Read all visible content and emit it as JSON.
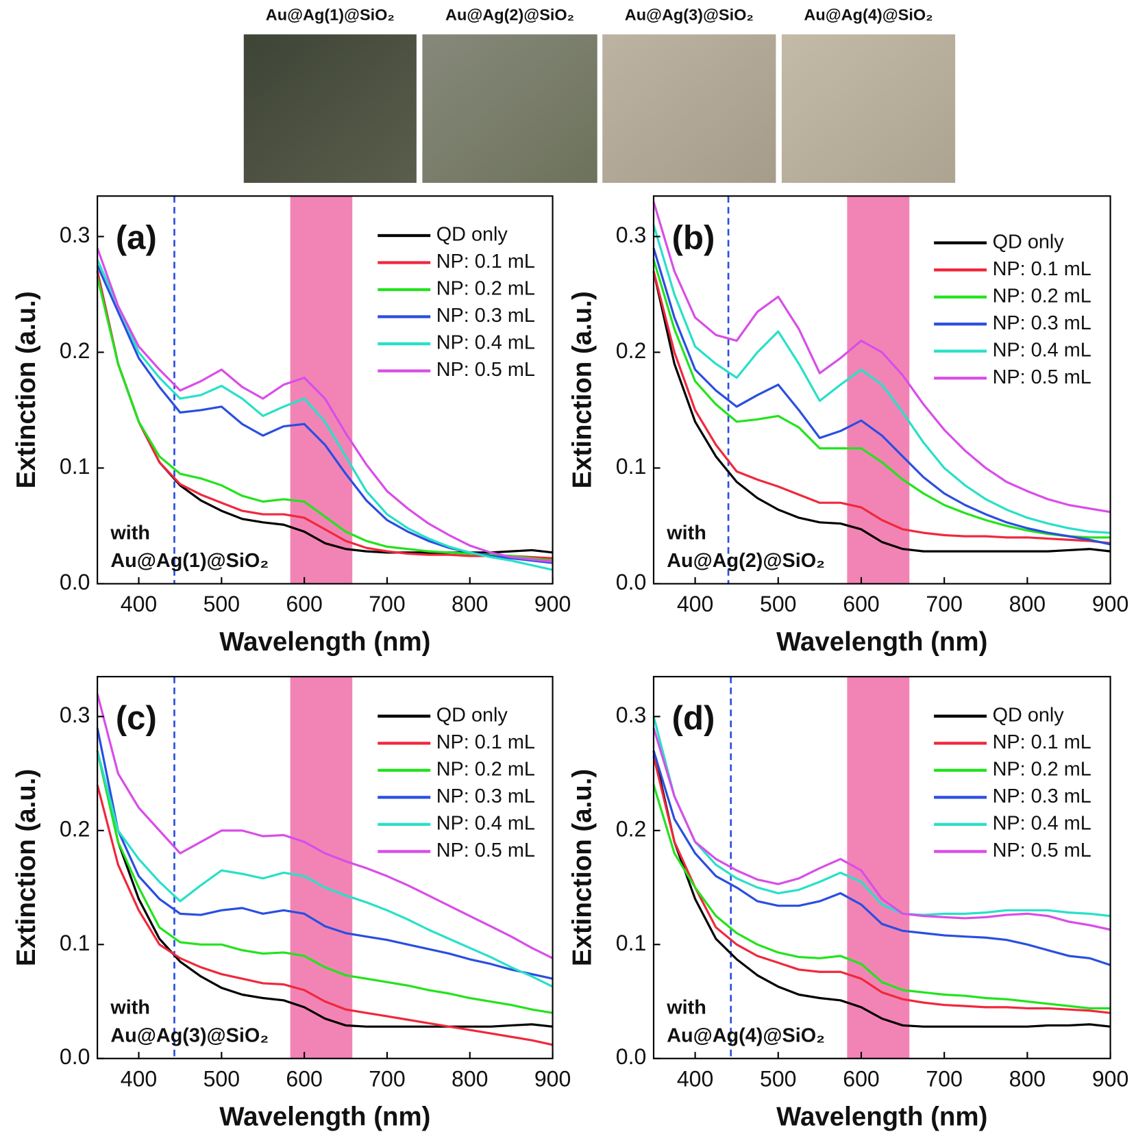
{
  "photo_labels": [
    "Au@Ag(1)@SiO₂",
    "Au@Ag(2)@SiO₂",
    "Au@Ag(3)@SiO₂",
    "Au@Ag(4)@SiO₂"
  ],
  "chart_data": [
    {
      "type": "line",
      "title": "(a)",
      "annotation": [
        "with",
        "Au@Ag(1)@SiO₂"
      ],
      "x_label": "Wavelength (nm)",
      "y_label": "Extinction (a.u.)",
      "xlim": [
        350,
        900
      ],
      "ylim": [
        0,
        0.335
      ],
      "xticks": [
        400,
        500,
        600,
        700,
        800,
        900
      ],
      "yticks": [
        {
          "value": 0,
          "label": "0.0"
        },
        0.1,
        0.2,
        0.3
      ],
      "vline": 443,
      "band": [
        583,
        658
      ],
      "legend": "upper right",
      "x": [
        350,
        375,
        400,
        425,
        450,
        475,
        500,
        525,
        550,
        575,
        600,
        625,
        650,
        675,
        700,
        725,
        750,
        775,
        800,
        825,
        850,
        875,
        900
      ],
      "series": [
        {
          "name": "QD only",
          "color": "#000000",
          "values": [
            0.27,
            0.19,
            0.14,
            0.105,
            0.085,
            0.072,
            0.063,
            0.056,
            0.053,
            0.051,
            0.045,
            0.035,
            0.03,
            0.028,
            0.027,
            0.027,
            0.027,
            0.027,
            0.027,
            0.027,
            0.028,
            0.029,
            0.027
          ]
        },
        {
          "name": "NP: 0.1 mL",
          "color": "#f0283c",
          "values": [
            0.27,
            0.19,
            0.14,
            0.105,
            0.086,
            0.077,
            0.07,
            0.063,
            0.06,
            0.06,
            0.057,
            0.047,
            0.037,
            0.031,
            0.028,
            0.026,
            0.025,
            0.025,
            0.024,
            0.024,
            0.024,
            0.023,
            0.022
          ]
        },
        {
          "name": "NP: 0.2 mL",
          "color": "#22e31c",
          "values": [
            0.265,
            0.19,
            0.14,
            0.11,
            0.095,
            0.091,
            0.085,
            0.076,
            0.071,
            0.073,
            0.071,
            0.058,
            0.045,
            0.037,
            0.032,
            0.03,
            0.028,
            0.027,
            0.026,
            0.025,
            0.024,
            0.022,
            0.02
          ]
        },
        {
          "name": "NP: 0.3 mL",
          "color": "#2a4ee0",
          "values": [
            0.275,
            0.235,
            0.195,
            0.17,
            0.148,
            0.15,
            0.153,
            0.138,
            0.128,
            0.136,
            0.138,
            0.12,
            0.095,
            0.072,
            0.055,
            0.045,
            0.037,
            0.031,
            0.027,
            0.024,
            0.022,
            0.02,
            0.018
          ]
        },
        {
          "name": "NP: 0.4 mL",
          "color": "#28e0c8",
          "values": [
            0.28,
            0.24,
            0.2,
            0.178,
            0.16,
            0.163,
            0.171,
            0.16,
            0.145,
            0.153,
            0.16,
            0.14,
            0.11,
            0.08,
            0.06,
            0.048,
            0.039,
            0.032,
            0.027,
            0.023,
            0.02,
            0.016,
            0.012
          ]
        },
        {
          "name": "NP: 0.5 mL",
          "color": "#d84ee8",
          "values": [
            0.29,
            0.24,
            0.205,
            0.185,
            0.167,
            0.175,
            0.185,
            0.17,
            0.16,
            0.172,
            0.178,
            0.16,
            0.13,
            0.103,
            0.08,
            0.065,
            0.052,
            0.042,
            0.033,
            0.027,
            0.023,
            0.021,
            0.019
          ]
        }
      ]
    },
    {
      "type": "line",
      "title": "(b)",
      "annotation": [
        "with",
        "Au@Ag(2)@SiO₂"
      ],
      "x_label": "Wavelength (nm)",
      "y_label": "Extinction (a.u.)",
      "xlim": [
        350,
        900
      ],
      "ylim": [
        0,
        0.335
      ],
      "xticks": [
        400,
        500,
        600,
        700,
        800,
        900
      ],
      "yticks": [
        {
          "value": 0,
          "label": "0.0"
        },
        0.1,
        0.2,
        0.3
      ],
      "vline": 440,
      "band": [
        583,
        658
      ],
      "legend": "upper right",
      "x": [
        350,
        375,
        400,
        425,
        450,
        475,
        500,
        525,
        550,
        575,
        600,
        625,
        650,
        675,
        700,
        725,
        750,
        775,
        800,
        825,
        850,
        875,
        900
      ],
      "series": [
        {
          "name": "QD only",
          "color": "#000000",
          "values": [
            0.27,
            0.19,
            0.14,
            0.11,
            0.088,
            0.074,
            0.064,
            0.057,
            0.053,
            0.052,
            0.047,
            0.036,
            0.03,
            0.028,
            0.028,
            0.028,
            0.028,
            0.028,
            0.028,
            0.028,
            0.029,
            0.03,
            0.028
          ]
        },
        {
          "name": "NP: 0.1 mL",
          "color": "#f0283c",
          "values": [
            0.27,
            0.2,
            0.15,
            0.12,
            0.097,
            0.09,
            0.084,
            0.077,
            0.07,
            0.07,
            0.066,
            0.055,
            0.047,
            0.044,
            0.042,
            0.041,
            0.041,
            0.04,
            0.04,
            0.039,
            0.038,
            0.037,
            0.035
          ]
        },
        {
          "name": "NP: 0.2 mL",
          "color": "#22e31c",
          "values": [
            0.28,
            0.22,
            0.175,
            0.155,
            0.14,
            0.142,
            0.145,
            0.135,
            0.117,
            0.117,
            0.117,
            0.105,
            0.09,
            0.078,
            0.068,
            0.061,
            0.055,
            0.05,
            0.046,
            0.043,
            0.041,
            0.04,
            0.04
          ]
        },
        {
          "name": "NP: 0.3 mL",
          "color": "#2a4ee0",
          "values": [
            0.29,
            0.23,
            0.185,
            0.167,
            0.153,
            0.163,
            0.172,
            0.15,
            0.126,
            0.132,
            0.141,
            0.128,
            0.11,
            0.092,
            0.078,
            0.068,
            0.06,
            0.053,
            0.048,
            0.044,
            0.041,
            0.038,
            0.034
          ]
        },
        {
          "name": "NP: 0.4 mL",
          "color": "#28e0c8",
          "values": [
            0.31,
            0.25,
            0.205,
            0.19,
            0.178,
            0.2,
            0.218,
            0.19,
            0.158,
            0.172,
            0.185,
            0.172,
            0.148,
            0.122,
            0.1,
            0.085,
            0.073,
            0.064,
            0.057,
            0.052,
            0.048,
            0.045,
            0.044
          ]
        },
        {
          "name": "NP: 0.5 mL",
          "color": "#d84ee8",
          "values": [
            0.33,
            0.27,
            0.23,
            0.215,
            0.21,
            0.235,
            0.248,
            0.22,
            0.182,
            0.195,
            0.21,
            0.2,
            0.18,
            0.155,
            0.133,
            0.115,
            0.1,
            0.088,
            0.08,
            0.073,
            0.068,
            0.065,
            0.062
          ]
        }
      ]
    },
    {
      "type": "line",
      "title": "(c)",
      "annotation": [
        "with",
        "Au@Ag(3)@SiO₂"
      ],
      "x_label": "Wavelength (nm)",
      "y_label": "Extinction (a.u.)",
      "xlim": [
        350,
        900
      ],
      "ylim": [
        0,
        0.335
      ],
      "xticks": [
        400,
        500,
        600,
        700,
        800,
        900
      ],
      "yticks": [
        {
          "value": 0,
          "label": "0.0"
        },
        0.1,
        0.2,
        0.3
      ],
      "vline": 443,
      "band": [
        583,
        658
      ],
      "legend": "upper right",
      "x": [
        350,
        375,
        400,
        425,
        450,
        475,
        500,
        525,
        550,
        575,
        600,
        625,
        650,
        675,
        700,
        725,
        750,
        775,
        800,
        825,
        850,
        875,
        900
      ],
      "series": [
        {
          "name": "QD only",
          "color": "#000000",
          "values": [
            0.27,
            0.19,
            0.14,
            0.105,
            0.085,
            0.072,
            0.062,
            0.056,
            0.053,
            0.051,
            0.045,
            0.035,
            0.029,
            0.028,
            0.028,
            0.028,
            0.028,
            0.028,
            0.028,
            0.028,
            0.029,
            0.03,
            0.028
          ]
        },
        {
          "name": "NP: 0.1 mL",
          "color": "#f0283c",
          "values": [
            0.24,
            0.17,
            0.13,
            0.1,
            0.088,
            0.08,
            0.074,
            0.07,
            0.066,
            0.065,
            0.06,
            0.05,
            0.043,
            0.04,
            0.037,
            0.034,
            0.031,
            0.028,
            0.025,
            0.022,
            0.019,
            0.016,
            0.012
          ]
        },
        {
          "name": "NP: 0.2 mL",
          "color": "#22e31c",
          "values": [
            0.27,
            0.19,
            0.15,
            0.115,
            0.102,
            0.1,
            0.1,
            0.095,
            0.092,
            0.093,
            0.09,
            0.08,
            0.073,
            0.07,
            0.067,
            0.064,
            0.06,
            0.057,
            0.053,
            0.05,
            0.047,
            0.043,
            0.04
          ]
        },
        {
          "name": "NP: 0.3 mL",
          "color": "#2a4ee0",
          "values": [
            0.29,
            0.2,
            0.16,
            0.14,
            0.127,
            0.126,
            0.13,
            0.132,
            0.127,
            0.13,
            0.127,
            0.116,
            0.11,
            0.107,
            0.104,
            0.1,
            0.096,
            0.092,
            0.087,
            0.083,
            0.078,
            0.074,
            0.07
          ]
        },
        {
          "name": "NP: 0.4 mL",
          "color": "#28e0c8",
          "values": [
            0.27,
            0.2,
            0.175,
            0.155,
            0.138,
            0.152,
            0.165,
            0.162,
            0.158,
            0.163,
            0.16,
            0.15,
            0.143,
            0.137,
            0.13,
            0.122,
            0.113,
            0.105,
            0.097,
            0.089,
            0.08,
            0.072,
            0.063
          ]
        },
        {
          "name": "NP: 0.5 mL",
          "color": "#d84ee8",
          "values": [
            0.32,
            0.25,
            0.22,
            0.2,
            0.18,
            0.19,
            0.2,
            0.2,
            0.195,
            0.196,
            0.19,
            0.18,
            0.173,
            0.167,
            0.16,
            0.152,
            0.143,
            0.134,
            0.125,
            0.116,
            0.107,
            0.097,
            0.088
          ]
        }
      ]
    },
    {
      "type": "line",
      "title": "(d)",
      "annotation": [
        "with",
        "Au@Ag(4)@SiO₂"
      ],
      "x_label": "Wavelength (nm)",
      "y_label": "Extinction (a.u.)",
      "xlim": [
        350,
        900
      ],
      "ylim": [
        0,
        0.335
      ],
      "xticks": [
        400,
        500,
        600,
        700,
        800,
        900
      ],
      "yticks": [
        {
          "value": 0,
          "label": "0.0"
        },
        0.1,
        0.2,
        0.3
      ],
      "vline": 443,
      "band": [
        583,
        658
      ],
      "legend": "upper right",
      "x": [
        350,
        375,
        400,
        425,
        450,
        475,
        500,
        525,
        550,
        575,
        600,
        625,
        650,
        675,
        700,
        725,
        750,
        775,
        800,
        825,
        850,
        875,
        900
      ],
      "series": [
        {
          "name": "QD only",
          "color": "#000000",
          "values": [
            0.27,
            0.19,
            0.14,
            0.105,
            0.087,
            0.073,
            0.063,
            0.056,
            0.053,
            0.051,
            0.045,
            0.035,
            0.029,
            0.028,
            0.028,
            0.028,
            0.028,
            0.028,
            0.028,
            0.029,
            0.029,
            0.03,
            0.028
          ]
        },
        {
          "name": "NP: 0.1 mL",
          "color": "#f0283c",
          "values": [
            0.265,
            0.19,
            0.15,
            0.115,
            0.1,
            0.09,
            0.084,
            0.078,
            0.076,
            0.076,
            0.07,
            0.058,
            0.052,
            0.049,
            0.047,
            0.046,
            0.045,
            0.045,
            0.044,
            0.044,
            0.043,
            0.042,
            0.04
          ]
        },
        {
          "name": "NP: 0.2 mL",
          "color": "#22e31c",
          "values": [
            0.24,
            0.18,
            0.15,
            0.125,
            0.11,
            0.1,
            0.093,
            0.089,
            0.088,
            0.09,
            0.083,
            0.067,
            0.06,
            0.058,
            0.056,
            0.055,
            0.053,
            0.052,
            0.05,
            0.048,
            0.046,
            0.044,
            0.044
          ]
        },
        {
          "name": "NP: 0.3 mL",
          "color": "#2a4ee0",
          "values": [
            0.27,
            0.21,
            0.18,
            0.16,
            0.15,
            0.138,
            0.134,
            0.134,
            0.138,
            0.145,
            0.135,
            0.118,
            0.112,
            0.11,
            0.108,
            0.107,
            0.106,
            0.104,
            0.1,
            0.095,
            0.09,
            0.088,
            0.082
          ]
        },
        {
          "name": "NP: 0.4 mL",
          "color": "#28e0c8",
          "values": [
            0.3,
            0.23,
            0.19,
            0.17,
            0.158,
            0.15,
            0.145,
            0.148,
            0.155,
            0.163,
            0.155,
            0.135,
            0.127,
            0.126,
            0.127,
            0.127,
            0.128,
            0.13,
            0.13,
            0.13,
            0.128,
            0.127,
            0.125
          ]
        },
        {
          "name": "NP: 0.5 mL",
          "color": "#d84ee8",
          "values": [
            0.29,
            0.23,
            0.19,
            0.175,
            0.165,
            0.157,
            0.153,
            0.158,
            0.167,
            0.175,
            0.165,
            0.14,
            0.127,
            0.125,
            0.124,
            0.123,
            0.124,
            0.126,
            0.127,
            0.125,
            0.12,
            0.117,
            0.113
          ]
        }
      ]
    }
  ]
}
